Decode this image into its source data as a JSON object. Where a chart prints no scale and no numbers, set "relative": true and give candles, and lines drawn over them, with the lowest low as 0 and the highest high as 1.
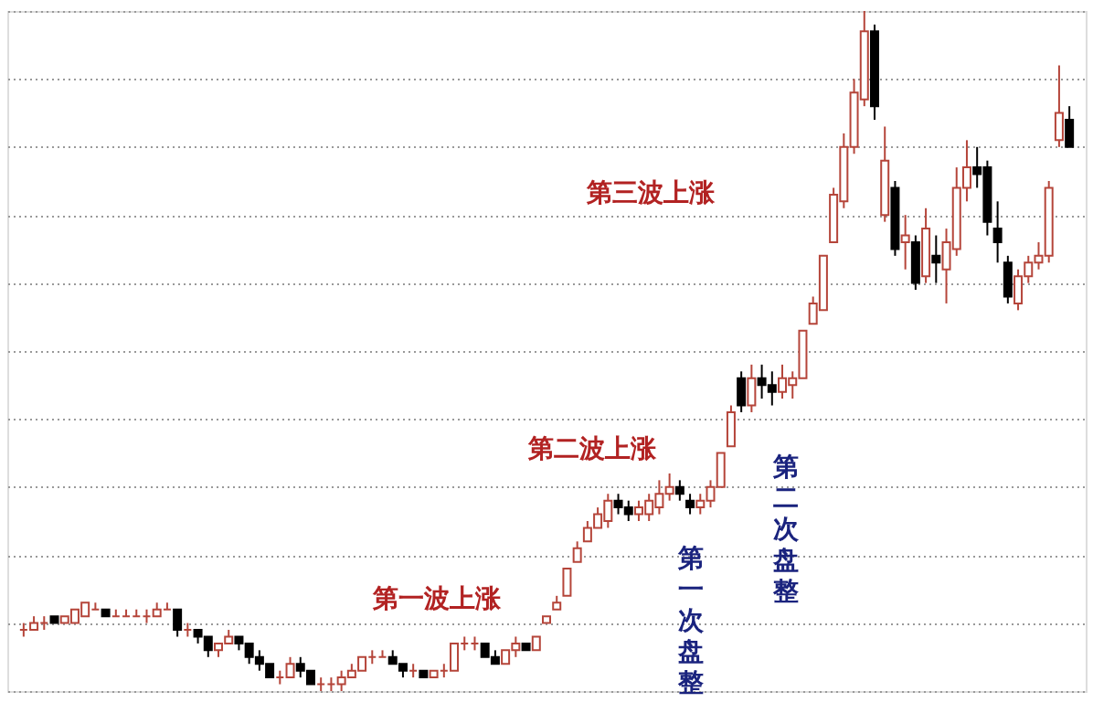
{
  "chart_data": {
    "type": "candlestick",
    "relative": true,
    "grid": "y",
    "annotations": [
      "第一波上涨",
      "第二波上涨",
      "第三波上涨",
      "第一次盘整",
      "第二次盘整"
    ],
    "categories": [
      null,
      null,
      null,
      null,
      null,
      null,
      null,
      null,
      null,
      null,
      null,
      null,
      null,
      null,
      null,
      null,
      null,
      null,
      null,
      null,
      null,
      null,
      null,
      null,
      null,
      null,
      null,
      null,
      null,
      null,
      null,
      null,
      null,
      null,
      null,
      null,
      null,
      null,
      null,
      null,
      null,
      null,
      null,
      null,
      null,
      null,
      null,
      null,
      null,
      null,
      null,
      null,
      null,
      null,
      null,
      null,
      null,
      null,
      null,
      null,
      null,
      null,
      null,
      null,
      null,
      null,
      null,
      null,
      null,
      null,
      null,
      null,
      null,
      null,
      null,
      null,
      null,
      null,
      null,
      null,
      null,
      null,
      null,
      null,
      null,
      null,
      null,
      null,
      null,
      null,
      null,
      null,
      null,
      null,
      null,
      null,
      null,
      null,
      null,
      null,
      null,
      null,
      null
    ],
    "ohlc": [
      [
        0.09,
        0.1,
        0.08,
        0.09
      ],
      [
        0.09,
        0.11,
        0.09,
        0.1
      ],
      [
        0.1,
        0.11,
        0.09,
        0.1
      ],
      [
        0.11,
        0.11,
        0.1,
        0.1
      ],
      [
        0.1,
        0.11,
        0.1,
        0.11
      ],
      [
        0.1,
        0.12,
        0.1,
        0.12
      ],
      [
        0.11,
        0.13,
        0.11,
        0.13
      ],
      [
        0.12,
        0.13,
        0.12,
        0.12
      ],
      [
        0.12,
        0.12,
        0.11,
        0.11
      ],
      [
        0.11,
        0.12,
        0.11,
        0.11
      ],
      [
        0.11,
        0.12,
        0.11,
        0.11
      ],
      [
        0.11,
        0.12,
        0.11,
        0.11
      ],
      [
        0.11,
        0.12,
        0.1,
        0.11
      ],
      [
        0.11,
        0.13,
        0.11,
        0.12
      ],
      [
        0.12,
        0.13,
        0.12,
        0.12
      ],
      [
        0.12,
        0.12,
        0.08,
        0.09
      ],
      [
        0.09,
        0.1,
        0.08,
        0.09
      ],
      [
        0.09,
        0.09,
        0.07,
        0.08
      ],
      [
        0.08,
        0.08,
        0.05,
        0.06
      ],
      [
        0.06,
        0.07,
        0.05,
        0.07
      ],
      [
        0.07,
        0.09,
        0.07,
        0.08
      ],
      [
        0.08,
        0.08,
        0.06,
        0.07
      ],
      [
        0.07,
        0.07,
        0.04,
        0.05
      ],
      [
        0.05,
        0.06,
        0.03,
        0.04
      ],
      [
        0.04,
        0.04,
        0.02,
        0.02
      ],
      [
        0.02,
        0.03,
        0.01,
        0.02
      ],
      [
        0.02,
        0.05,
        0.02,
        0.04
      ],
      [
        0.04,
        0.05,
        0.02,
        0.03
      ],
      [
        0.03,
        0.03,
        0.01,
        0.01
      ],
      [
        0.01,
        0.02,
        0.0,
        0.01
      ],
      [
        0.01,
        0.02,
        0.0,
        0.01
      ],
      [
        0.01,
        0.03,
        0.0,
        0.02
      ],
      [
        0.02,
        0.04,
        0.02,
        0.03
      ],
      [
        0.03,
        0.05,
        0.03,
        0.05
      ],
      [
        0.05,
        0.06,
        0.04,
        0.05
      ],
      [
        0.05,
        0.06,
        0.05,
        0.05
      ],
      [
        0.05,
        0.06,
        0.04,
        0.04
      ],
      [
        0.04,
        0.04,
        0.02,
        0.03
      ],
      [
        0.03,
        0.04,
        0.02,
        0.03
      ],
      [
        0.03,
        0.03,
        0.02,
        0.02
      ],
      [
        0.02,
        0.03,
        0.02,
        0.03
      ],
      [
        0.03,
        0.04,
        0.02,
        0.03
      ],
      [
        0.03,
        0.07,
        0.03,
        0.07
      ],
      [
        0.07,
        0.08,
        0.06,
        0.07
      ],
      [
        0.07,
        0.08,
        0.06,
        0.07
      ],
      [
        0.07,
        0.07,
        0.05,
        0.05
      ],
      [
        0.05,
        0.06,
        0.04,
        0.04
      ],
      [
        0.04,
        0.06,
        0.04,
        0.06
      ],
      [
        0.06,
        0.08,
        0.05,
        0.07
      ],
      [
        0.07,
        0.07,
        0.06,
        0.06
      ],
      [
        0.06,
        0.08,
        0.06,
        0.08
      ],
      [
        0.1,
        0.11,
        0.1,
        0.11
      ],
      [
        0.12,
        0.14,
        0.12,
        0.13
      ],
      [
        0.14,
        0.18,
        0.14,
        0.18
      ],
      [
        0.19,
        0.22,
        0.19,
        0.21
      ],
      [
        0.22,
        0.25,
        0.22,
        0.24
      ],
      [
        0.24,
        0.27,
        0.24,
        0.26
      ],
      [
        0.25,
        0.29,
        0.24,
        0.28
      ],
      [
        0.28,
        0.29,
        0.26,
        0.27
      ],
      [
        0.27,
        0.28,
        0.25,
        0.26
      ],
      [
        0.26,
        0.28,
        0.25,
        0.27
      ],
      [
        0.26,
        0.29,
        0.25,
        0.28
      ],
      [
        0.27,
        0.31,
        0.26,
        0.29
      ],
      [
        0.29,
        0.32,
        0.28,
        0.3
      ],
      [
        0.3,
        0.31,
        0.28,
        0.29
      ],
      [
        0.28,
        0.29,
        0.26,
        0.27
      ],
      [
        0.27,
        0.29,
        0.26,
        0.28
      ],
      [
        0.28,
        0.31,
        0.27,
        0.3
      ],
      [
        0.3,
        0.35,
        0.3,
        0.35
      ],
      [
        0.36,
        0.42,
        0.36,
        0.41
      ],
      [
        0.46,
        0.47,
        0.41,
        0.42
      ],
      [
        0.42,
        0.48,
        0.41,
        0.46
      ],
      [
        0.46,
        0.48,
        0.43,
        0.45
      ],
      [
        0.45,
        0.47,
        0.42,
        0.44
      ],
      [
        0.44,
        0.48,
        0.43,
        0.46
      ],
      [
        0.45,
        0.47,
        0.43,
        0.46
      ],
      [
        0.46,
        0.53,
        0.46,
        0.53
      ],
      [
        0.54,
        0.58,
        0.54,
        0.57
      ],
      [
        0.56,
        0.64,
        0.56,
        0.64
      ],
      [
        0.66,
        0.74,
        0.66,
        0.73
      ],
      [
        0.72,
        0.82,
        0.71,
        0.8
      ],
      [
        0.8,
        0.9,
        0.79,
        0.88
      ],
      [
        0.87,
        1.0,
        0.86,
        0.97
      ],
      [
        0.97,
        0.98,
        0.84,
        0.86
      ],
      [
        0.7,
        0.83,
        0.69,
        0.78
      ],
      [
        0.74,
        0.75,
        0.64,
        0.65
      ],
      [
        0.66,
        0.7,
        0.62,
        0.67
      ],
      [
        0.66,
        0.67,
        0.59,
        0.6
      ],
      [
        0.61,
        0.71,
        0.6,
        0.68
      ],
      [
        0.64,
        0.67,
        0.6,
        0.63
      ],
      [
        0.62,
        0.68,
        0.57,
        0.66
      ],
      [
        0.65,
        0.77,
        0.64,
        0.74
      ],
      [
        0.74,
        0.81,
        0.72,
        0.77
      ],
      [
        0.77,
        0.8,
        0.74,
        0.76
      ],
      [
        0.77,
        0.78,
        0.67,
        0.69
      ],
      [
        0.68,
        0.72,
        0.63,
        0.66
      ],
      [
        0.63,
        0.64,
        0.57,
        0.58
      ],
      [
        0.57,
        0.62,
        0.56,
        0.61
      ],
      [
        0.61,
        0.64,
        0.6,
        0.63
      ],
      [
        0.63,
        0.66,
        0.62,
        0.64
      ],
      [
        0.64,
        0.75,
        0.63,
        0.74
      ],
      [
        0.81,
        0.92,
        0.8,
        0.85
      ],
      [
        0.84,
        0.86,
        0.8,
        0.8
      ]
    ],
    "colors": [
      "#b5453a",
      "#b5453a",
      "#b5453a",
      "#000000",
      "#b5453a",
      "#b5453a",
      "#b5453a",
      "#b5453a",
      "#000000",
      "#b5453a",
      "#b5453a",
      "#b5453a",
      "#b5453a",
      "#b5453a",
      "#b5453a",
      "#000000",
      "#b5453a",
      "#000000",
      "#000000",
      "#b5453a",
      "#b5453a",
      "#000000",
      "#000000",
      "#000000",
      "#000000",
      "#b5453a",
      "#b5453a",
      "#000000",
      "#000000",
      "#b5453a",
      "#b5453a",
      "#b5453a",
      "#b5453a",
      "#b5453a",
      "#b5453a",
      "#b5453a",
      "#000000",
      "#000000",
      "#b5453a",
      "#000000",
      "#b5453a",
      "#b5453a",
      "#b5453a",
      "#b5453a",
      "#b5453a",
      "#000000",
      "#000000",
      "#b5453a",
      "#b5453a",
      "#000000",
      "#b5453a",
      "#b5453a",
      "#b5453a",
      "#b5453a",
      "#b5453a",
      "#b5453a",
      "#b5453a",
      "#b5453a",
      "#000000",
      "#000000",
      "#b5453a",
      "#b5453a",
      "#b5453a",
      "#b5453a",
      "#000000",
      "#000000",
      "#b5453a",
      "#b5453a",
      "#b5453a",
      "#b5453a",
      "#000000",
      "#b5453a",
      "#000000",
      "#000000",
      "#b5453a",
      "#b5453a",
      "#b5453a",
      "#b5453a",
      "#b5453a",
      "#b5453a",
      "#b5453a",
      "#b5453a",
      "#b5453a",
      "#000000",
      "#b5453a",
      "#000000",
      "#b5453a",
      "#000000",
      "#b5453a",
      "#000000",
      "#b5453a",
      "#b5453a",
      "#b5453a",
      "#000000",
      "#000000",
      "#000000",
      "#000000",
      "#b5453a",
      "#b5453a",
      "#b5453a",
      "#b5453a",
      "#b5453a",
      "#000000"
    ]
  }
}
